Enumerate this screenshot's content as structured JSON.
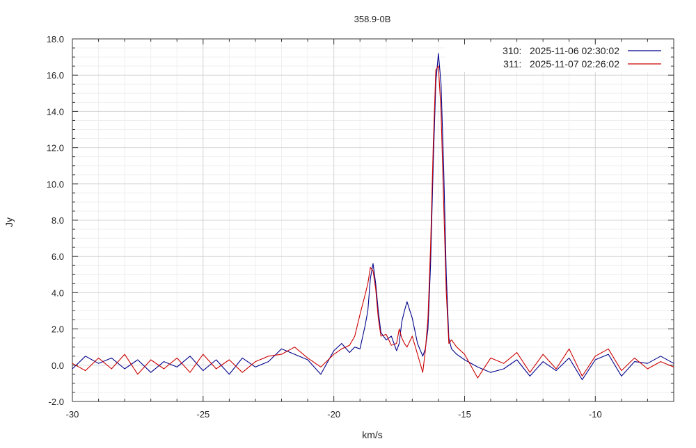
{
  "chart_data": {
    "type": "line",
    "title": "358.9-0B",
    "xlabel": "km/s",
    "ylabel": "Jy",
    "xlim": [
      -30,
      -7.0
    ],
    "ylim": [
      -2.0,
      18.0
    ],
    "x_ticks": [
      -30,
      -25,
      -20,
      -15,
      -10
    ],
    "x_tick_labels": [
      "-30",
      "-25",
      "-20",
      "-15",
      "-10"
    ],
    "y_ticks": [
      -2,
      0,
      2,
      4,
      6,
      8,
      10,
      12,
      14,
      16,
      18
    ],
    "y_tick_labels": [
      "-2.0",
      "0.0",
      "2.0",
      "4.0",
      "6.0",
      "8.0",
      "10.0",
      "12.0",
      "14.0",
      "16.0",
      "18.0"
    ],
    "grid": true,
    "legend_position": "top-right",
    "series": [
      {
        "name": "310:   2025-11-06 02:30:02",
        "color": "#00008b",
        "x": [
          -30.0,
          -29.5,
          -29.0,
          -28.5,
          -28.0,
          -27.5,
          -27.0,
          -26.5,
          -26.0,
          -25.5,
          -25.0,
          -24.5,
          -24.0,
          -23.5,
          -23.0,
          -22.5,
          -22.0,
          -21.5,
          -21.0,
          -20.5,
          -20.0,
          -19.7,
          -19.4,
          -19.2,
          -19.0,
          -18.8,
          -18.7,
          -18.6,
          -18.5,
          -18.4,
          -18.3,
          -18.2,
          -18.0,
          -17.8,
          -17.6,
          -17.5,
          -17.4,
          -17.3,
          -17.2,
          -17.0,
          -16.8,
          -16.6,
          -16.5,
          -16.4,
          -16.3,
          -16.2,
          -16.1,
          -16.0,
          -15.9,
          -15.8,
          -15.7,
          -15.6,
          -15.5,
          -15.3,
          -15.0,
          -14.5,
          -14.0,
          -13.5,
          -13.0,
          -12.5,
          -12.0,
          -11.5,
          -11.0,
          -10.5,
          -10.0,
          -9.5,
          -9.0,
          -8.5,
          -8.0,
          -7.5,
          -7.0
        ],
        "y": [
          -0.2,
          0.5,
          0.1,
          0.4,
          -0.2,
          0.3,
          -0.4,
          0.2,
          -0.1,
          0.5,
          -0.3,
          0.3,
          -0.5,
          0.4,
          -0.1,
          0.2,
          0.9,
          0.6,
          0.3,
          -0.5,
          0.8,
          1.2,
          0.7,
          1.0,
          0.9,
          2.2,
          3.0,
          4.8,
          5.6,
          4.5,
          3.0,
          1.8,
          1.4,
          1.6,
          0.8,
          1.2,
          2.4,
          3.0,
          3.5,
          2.6,
          1.2,
          0.5,
          0.9,
          2.0,
          5.5,
          11.0,
          15.6,
          17.2,
          15.5,
          11.0,
          5.0,
          1.5,
          0.9,
          0.6,
          0.3,
          -0.1,
          -0.4,
          -0.2,
          0.3,
          -0.6,
          0.2,
          -0.3,
          0.4,
          -0.8,
          0.3,
          0.6,
          -0.6,
          0.2,
          0.1,
          0.5,
          0.1
        ]
      },
      {
        "name": "311:   2025-11-07 02:26:02",
        "color": "#cc0000",
        "x": [
          -30.0,
          -29.5,
          -29.0,
          -28.5,
          -28.0,
          -27.5,
          -27.0,
          -26.5,
          -26.0,
          -25.5,
          -25.0,
          -24.5,
          -24.0,
          -23.5,
          -23.0,
          -22.5,
          -22.0,
          -21.5,
          -21.0,
          -20.5,
          -20.0,
          -19.7,
          -19.4,
          -19.2,
          -19.0,
          -18.8,
          -18.7,
          -18.6,
          -18.5,
          -18.4,
          -18.3,
          -18.2,
          -18.0,
          -17.8,
          -17.6,
          -17.5,
          -17.4,
          -17.3,
          -17.2,
          -17.0,
          -16.8,
          -16.6,
          -16.5,
          -16.4,
          -16.3,
          -16.2,
          -16.1,
          -16.0,
          -15.9,
          -15.8,
          -15.7,
          -15.6,
          -15.5,
          -15.3,
          -15.0,
          -14.5,
          -14.0,
          -13.5,
          -13.0,
          -12.5,
          -12.0,
          -11.5,
          -11.0,
          -10.5,
          -10.0,
          -9.5,
          -9.0,
          -8.5,
          -8.0,
          -7.5,
          -7.0
        ],
        "y": [
          0.1,
          -0.3,
          0.4,
          -0.2,
          0.6,
          -0.5,
          0.3,
          -0.2,
          0.4,
          -0.4,
          0.6,
          -0.2,
          0.3,
          -0.4,
          0.2,
          0.5,
          0.6,
          1.0,
          0.4,
          -0.1,
          0.6,
          0.9,
          1.1,
          1.6,
          2.8,
          3.9,
          4.5,
          5.4,
          5.2,
          4.2,
          2.6,
          1.6,
          1.7,
          1.1,
          1.2,
          2.0,
          1.5,
          1.2,
          1.0,
          1.6,
          0.6,
          -0.4,
          0.8,
          2.6,
          6.5,
          12.0,
          16.3,
          16.5,
          14.0,
          9.0,
          4.0,
          1.2,
          1.4,
          1.0,
          0.6,
          -0.7,
          0.4,
          0.1,
          0.7,
          -0.4,
          0.6,
          -0.2,
          0.9,
          -0.6,
          0.5,
          0.9,
          -0.3,
          0.4,
          -0.2,
          0.2,
          -0.1
        ]
      }
    ]
  }
}
